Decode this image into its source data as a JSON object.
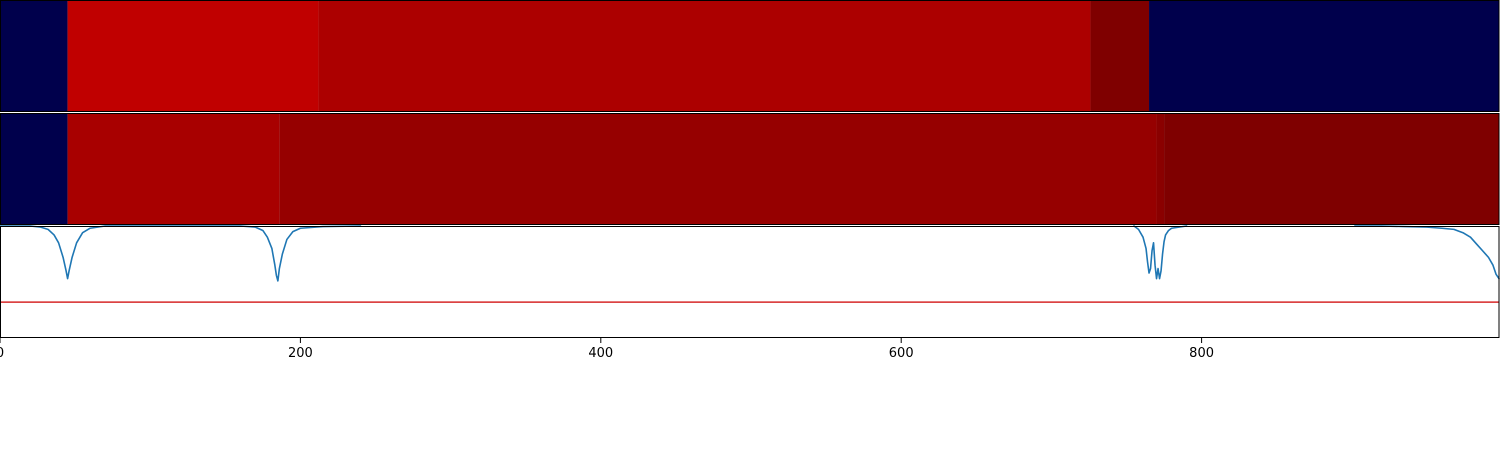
{
  "chart_data": {
    "type": "heatmap",
    "x_range": [
      0,
      998
    ],
    "x_ticks": [
      0,
      200,
      400,
      600,
      800
    ],
    "x_tick_labels": [
      "0",
      "200",
      "400",
      "600",
      "800"
    ],
    "heatmap_rows": [
      {
        "segments": [
          {
            "start": 0,
            "end": 45,
            "color": "#00004c"
          },
          {
            "start": 45,
            "end": 212,
            "color": "#c00000"
          },
          {
            "start": 212,
            "end": 726,
            "color": "#ac0000"
          },
          {
            "start": 726,
            "end": 765,
            "color": "#7f0000"
          },
          {
            "start": 765,
            "end": 998,
            "color": "#00004c"
          }
        ]
      },
      {
        "segments": [
          {
            "start": 0,
            "end": 45,
            "color": "#00004c"
          },
          {
            "start": 45,
            "end": 186,
            "color": "#a80000"
          },
          {
            "start": 186,
            "end": 770,
            "color": "#960000"
          },
          {
            "start": 770,
            "end": 775,
            "color": "#8a0000"
          },
          {
            "start": 775,
            "end": 998,
            "color": "#7f0000"
          }
        ]
      }
    ],
    "line_panel": {
      "ylim": [
        -1.0,
        0.0
      ],
      "threshold": -0.68,
      "threshold_color": "#d62728",
      "line_color": "#1f77b4",
      "series": [
        {
          "x": [
            0,
            20,
            27,
            32,
            36,
            39,
            42,
            44,
            45,
            46,
            48,
            51,
            55,
            60,
            70,
            80,
            100,
            140,
            160,
            170,
            175,
            178,
            181,
            183,
            184,
            185,
            186,
            188,
            191,
            195,
            200,
            215,
            240
          ],
          "y": [
            0,
            0,
            -0.01,
            -0.03,
            -0.08,
            -0.15,
            -0.28,
            -0.4,
            -0.47,
            -0.4,
            -0.28,
            -0.15,
            -0.06,
            -0.02,
            0,
            0,
            0,
            0,
            0,
            -0.01,
            -0.04,
            -0.1,
            -0.2,
            -0.35,
            -0.44,
            -0.49,
            -0.38,
            -0.25,
            -0.12,
            -0.05,
            -0.02,
            -0.005,
            0
          ]
        },
        {
          "x": [
            755,
            758,
            761,
            763,
            764,
            765,
            766,
            767,
            768,
            769,
            770,
            771,
            772,
            773,
            774,
            775,
            776,
            778,
            780,
            785,
            790
          ],
          "y": [
            0,
            -0.03,
            -0.1,
            -0.2,
            -0.32,
            -0.42,
            -0.38,
            -0.22,
            -0.15,
            -0.35,
            -0.47,
            -0.38,
            -0.47,
            -0.4,
            -0.25,
            -0.14,
            -0.08,
            -0.04,
            -0.02,
            -0.01,
            0
          ]
        },
        {
          "x": [
            902,
            920,
            935,
            950,
            960,
            968,
            974,
            979,
            983,
            987,
            991,
            994,
            996,
            998
          ],
          "y": [
            0,
            0,
            -0.005,
            -0.01,
            -0.02,
            -0.03,
            -0.06,
            -0.1,
            -0.16,
            -0.22,
            -0.28,
            -0.35,
            -0.43,
            -0.47
          ]
        }
      ]
    }
  }
}
